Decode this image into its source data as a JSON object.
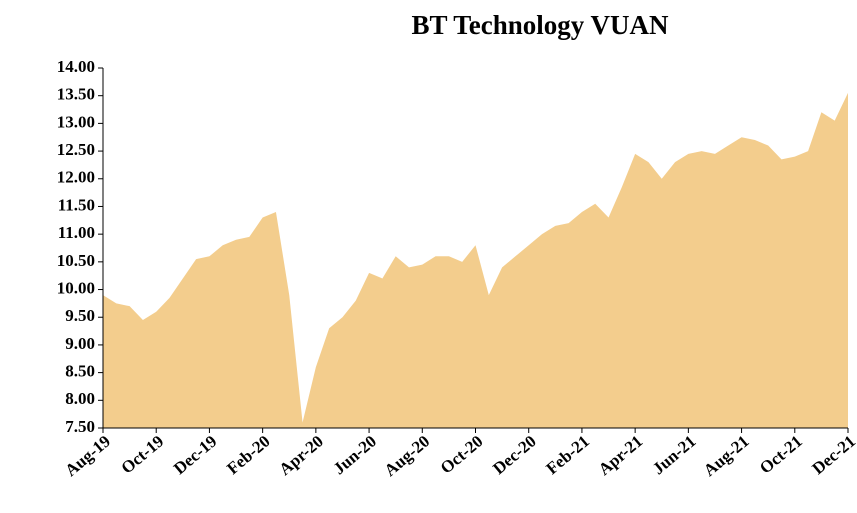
{
  "chart_data": {
    "type": "area",
    "title": "BT Technology VUAN",
    "categories": [
      "Aug-19",
      null,
      null,
      null,
      "Oct-19",
      null,
      null,
      null,
      "Dec-19",
      null,
      null,
      null,
      "Feb-20",
      null,
      null,
      null,
      "Apr-20",
      null,
      null,
      null,
      "Jun-20",
      null,
      null,
      null,
      "Aug-20",
      null,
      null,
      null,
      "Oct-20",
      null,
      null,
      null,
      "Dec-20",
      null,
      null,
      null,
      "Feb-21",
      null,
      null,
      null,
      "Apr-21",
      null,
      null,
      null,
      "Jun-21",
      null,
      null,
      null,
      "Aug-21",
      null,
      null,
      null,
      "Oct-21",
      null,
      null,
      null,
      "Dec-21"
    ],
    "values": [
      9.9,
      9.75,
      9.7,
      9.45,
      9.6,
      9.85,
      10.2,
      10.55,
      10.6,
      10.8,
      10.9,
      10.95,
      11.3,
      11.4,
      9.9,
      7.6,
      8.6,
      9.3,
      9.5,
      9.8,
      10.3,
      10.2,
      10.6,
      10.4,
      10.45,
      10.6,
      10.6,
      10.5,
      10.8,
      9.9,
      10.4,
      10.6,
      10.8,
      11.0,
      11.15,
      11.2,
      11.4,
      11.55,
      11.3,
      11.85,
      12.45,
      12.3,
      12.0,
      12.3,
      12.45,
      12.5,
      12.45,
      12.6,
      12.75,
      12.7,
      12.6,
      12.35,
      12.4,
      12.5,
      13.2,
      13.05,
      13.55
    ],
    "color": "#f3cd8d",
    "ylim": [
      7.5,
      14
    ],
    "yticks": [
      {
        "value": 7.5,
        "label": "7.50"
      },
      {
        "value": 8,
        "label": "8.00"
      },
      {
        "value": 8.5,
        "label": "8.50"
      },
      {
        "value": 9,
        "label": "9.00"
      },
      {
        "value": 9.5,
        "label": "9.50"
      },
      {
        "value": 10,
        "label": "10.00"
      },
      {
        "value": 10.5,
        "label": "10.50"
      },
      {
        "value": 11,
        "label": "11.00"
      },
      {
        "value": 11.5,
        "label": "11.50"
      },
      {
        "value": 12,
        "label": "12.00"
      },
      {
        "value": 12.5,
        "label": "12.50"
      },
      {
        "value": 13,
        "label": "13.00"
      },
      {
        "value": 13.5,
        "label": "13.50"
      },
      {
        "value": 14,
        "label": "14.00"
      }
    ],
    "grid": false
  }
}
